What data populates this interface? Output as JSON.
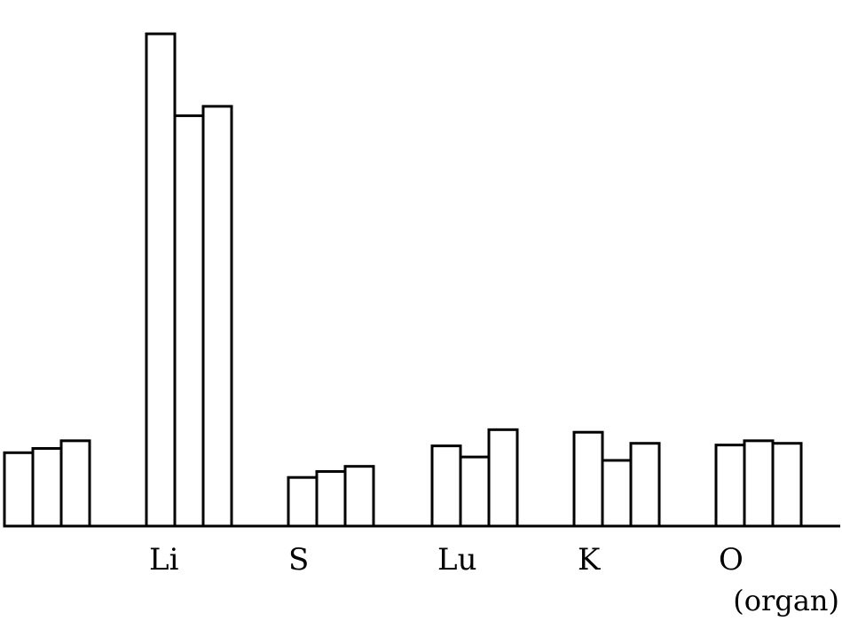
{
  "chart_data": {
    "type": "bar",
    "title": "",
    "xlabel": "(organ)",
    "ylabel": "",
    "grid": false,
    "legend": "none",
    "categories": [
      "",
      "Li",
      "S",
      "Lu",
      "K",
      "O"
    ],
    "series": [
      {
        "values": [
          86,
          577,
          57,
          94,
          110,
          95
        ]
      },
      {
        "values": [
          91,
          481,
          64,
          81,
          77,
          100
        ]
      },
      {
        "values": [
          100,
          492,
          70,
          113,
          97,
          97
        ]
      }
    ],
    "ylim": [
      0,
      600
    ],
    "colors": {
      "bar_fill": "#ffffff",
      "bar_stroke": "#000000"
    }
  }
}
